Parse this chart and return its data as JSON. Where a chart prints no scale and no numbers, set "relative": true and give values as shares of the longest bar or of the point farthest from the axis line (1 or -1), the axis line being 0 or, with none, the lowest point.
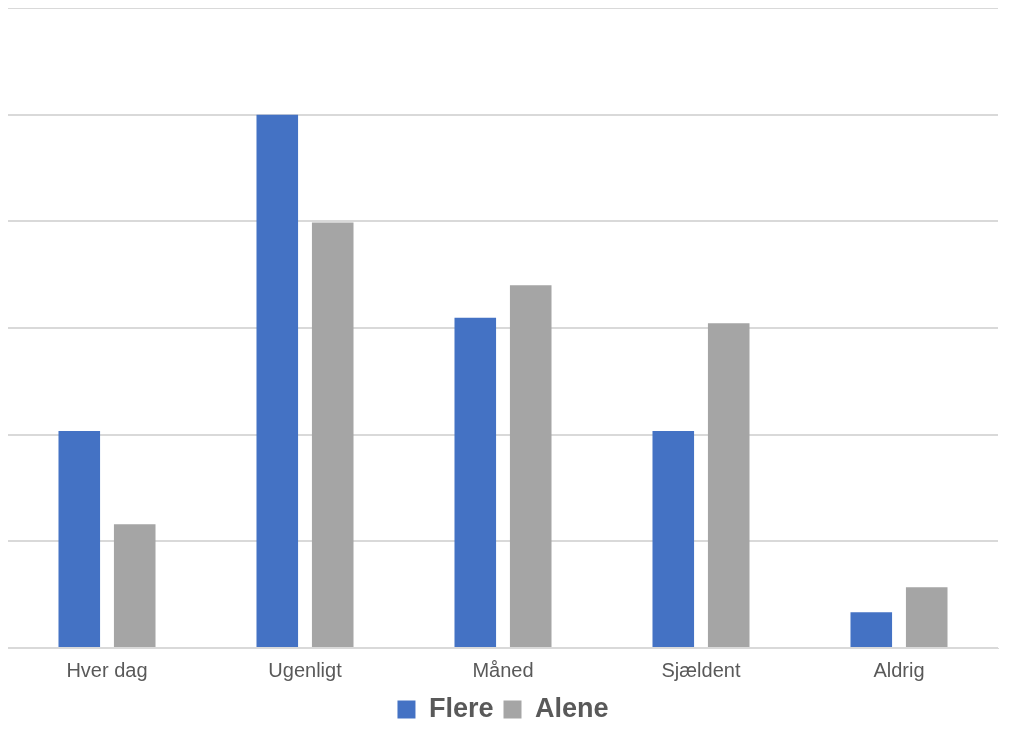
{
  "chart_data": {
    "type": "bar",
    "relative": true,
    "categories": [
      "Hver dag",
      "Ugenligt",
      "Måned",
      "Sjældent",
      "Aldrig"
    ],
    "series": [
      {
        "name": "Flere",
        "color": "#4472c4",
        "values": [
          0.407,
          1,
          0.619,
          0.407,
          0.067
        ]
      },
      {
        "name": "Alene",
        "color": "#a5a5a5",
        "values": [
          0.232,
          0.798,
          0.68,
          0.609,
          0.114
        ]
      }
    ],
    "grid": "y",
    "legend": "bottom"
  }
}
